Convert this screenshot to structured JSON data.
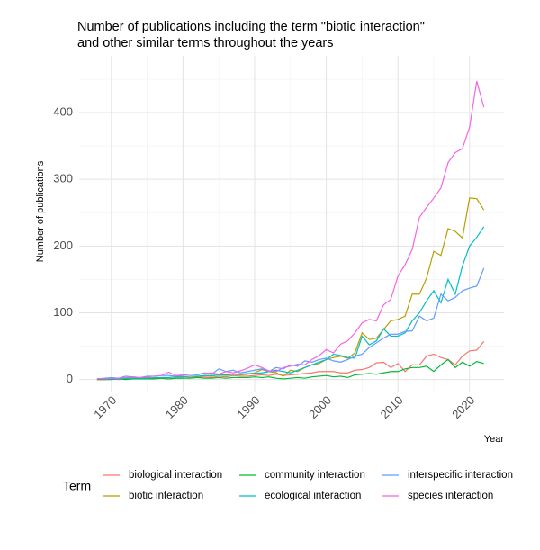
{
  "chart_data": {
    "type": "line",
    "title": [
      "Number of publications including the term \"biotic interaction\"",
      "and other similar terms throughout the years"
    ],
    "xlabel": "Year",
    "ylabel": "Number of publications",
    "legend_title": "Term",
    "legend": "bottom",
    "grid": true,
    "x": [
      1968,
      1969,
      1970,
      1971,
      1972,
      1973,
      1974,
      1975,
      1976,
      1977,
      1978,
      1979,
      1980,
      1981,
      1982,
      1983,
      1984,
      1985,
      1986,
      1987,
      1988,
      1989,
      1990,
      1991,
      1992,
      1993,
      1994,
      1995,
      1996,
      1997,
      1998,
      1999,
      2000,
      2001,
      2002,
      2003,
      2004,
      2005,
      2006,
      2007,
      2008,
      2009,
      2010,
      2011,
      2012,
      2013,
      2014,
      2015,
      2016,
      2017,
      2018,
      2019,
      2020,
      2021,
      2022
    ],
    "xlim": [
      1965.5,
      2024.8
    ],
    "xticks": [
      1970,
      1980,
      1990,
      2000,
      2010,
      2020
    ],
    "xminor": [
      1975,
      1985,
      1995,
      2005,
      2015
    ],
    "ylim": [
      -18,
      485
    ],
    "yticks": [
      0,
      100,
      200,
      300,
      400
    ],
    "yminor": [
      50,
      150,
      250,
      350,
      450
    ],
    "series": [
      {
        "name": "biological interaction",
        "color": "#F8766D",
        "values": [
          0,
          0,
          1,
          0,
          1,
          1,
          2,
          1,
          2,
          2,
          1,
          2,
          2,
          3,
          3,
          4,
          3,
          5,
          4,
          6,
          5,
          5,
          6,
          7,
          6,
          8,
          6,
          7,
          8,
          9,
          10,
          12,
          12,
          12,
          10,
          10,
          14,
          15,
          18,
          25,
          26,
          18,
          24,
          12,
          22,
          22,
          35,
          38,
          33,
          30,
          22,
          35,
          43,
          44,
          57
        ]
      },
      {
        "name": "biotic interaction",
        "color": "#B79F00",
        "values": [
          0,
          0,
          1,
          1,
          1,
          2,
          2,
          3,
          2,
          3,
          3,
          4,
          4,
          5,
          4,
          6,
          5,
          7,
          6,
          8,
          7,
          8,
          10,
          15,
          12,
          10,
          5,
          14,
          12,
          18,
          22,
          24,
          30,
          33,
          35,
          32,
          40,
          70,
          60,
          62,
          75,
          88,
          90,
          95,
          128,
          128,
          152,
          192,
          186,
          226,
          222,
          212,
          272,
          271,
          254
        ]
      },
      {
        "name": "community interaction",
        "color": "#00BA38",
        "values": [
          0,
          0,
          0,
          1,
          0,
          1,
          1,
          1,
          1,
          2,
          1,
          2,
          2,
          2,
          3,
          2,
          2,
          3,
          2,
          3,
          3,
          3,
          4,
          3,
          4,
          2,
          1,
          2,
          3,
          2,
          4,
          5,
          6,
          4,
          5,
          3,
          7,
          8,
          9,
          8,
          10,
          12,
          12,
          16,
          18,
          18,
          20,
          12,
          22,
          30,
          18,
          26,
          20,
          27,
          24
        ]
      },
      {
        "name": "ecological interaction",
        "color": "#00BFC4",
        "values": [
          1,
          1,
          1,
          1,
          2,
          2,
          2,
          2,
          3,
          3,
          3,
          4,
          4,
          5,
          5,
          6,
          6,
          7,
          7,
          8,
          8,
          9,
          9,
          10,
          12,
          14,
          12,
          10,
          14,
          18,
          22,
          26,
          30,
          38,
          36,
          33,
          32,
          65,
          52,
          58,
          76,
          65,
          65,
          70,
          88,
          100,
          118,
          133,
          115,
          150,
          128,
          170,
          200,
          213,
          229
        ]
      },
      {
        "name": "interspecific interaction",
        "color": "#619CFF",
        "values": [
          1,
          2,
          3,
          2,
          5,
          4,
          3,
          5,
          5,
          6,
          6,
          5,
          6,
          8,
          7,
          10,
          8,
          16,
          12,
          14,
          10,
          12,
          14,
          16,
          12,
          18,
          16,
          22,
          20,
          28,
          26,
          30,
          32,
          28,
          26,
          30,
          35,
          38,
          48,
          55,
          62,
          68,
          68,
          72,
          73,
          95,
          88,
          92,
          128,
          118,
          123,
          133,
          137,
          140,
          167
        ]
      },
      {
        "name": "species interaction",
        "color": "#F564E3",
        "values": [
          1,
          1,
          2,
          2,
          3,
          4,
          3,
          4,
          5,
          6,
          11,
          6,
          7,
          8,
          8,
          9,
          10,
          8,
          12,
          10,
          13,
          17,
          22,
          18,
          13,
          12,
          18,
          20,
          23,
          22,
          30,
          36,
          45,
          40,
          53,
          58,
          70,
          85,
          90,
          88,
          112,
          120,
          155,
          172,
          195,
          243,
          258,
          272,
          287,
          325,
          340,
          346,
          378,
          447,
          408
        ]
      }
    ]
  }
}
